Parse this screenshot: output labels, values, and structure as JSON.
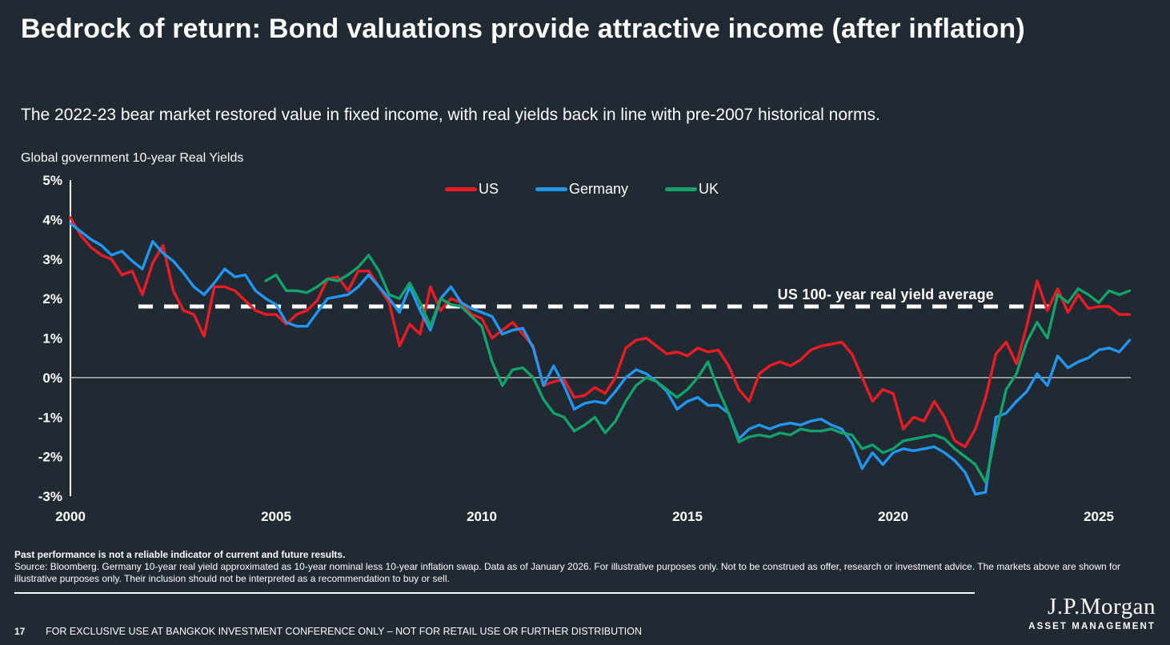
{
  "slide": {
    "title": "Bedrock of return: Bond valuations provide attractive income (after inflation)",
    "subtitle": "The 2022-23 bear market restored value in fixed income, with real yields back in line with pre-2007 historical norms.",
    "page_number": "17",
    "usage_statement": "FOR EXCLUSIVE USE AT BANGKOK INVESTMENT CONFERENCE ONLY – NOT FOR RETAIL USE OR FURTHER DISTRIBUTION",
    "logo": {
      "brand": "J.P.Morgan",
      "division": "ASSET MANAGEMENT"
    },
    "footnotes": {
      "bold_line": "Past performance is not a reliable indicator of current and future results.",
      "source_line": "Source: Bloomberg. Germany 10-year real yield approximated as 10-year nominal less 10-year inflation swap. Data as of January 2026. For illustrative purposes only. Not to be construed as offer, research or investment advice. The markets above are shown for illustrative purposes only. Their inclusion should not be interpreted as a recommendation to buy or sell."
    }
  },
  "chart_data": {
    "type": "line",
    "title": "Global government 10-year Real Yields",
    "annotation": "US 100- year real yield average",
    "annotation_value": 1.8,
    "xlim": [
      2000,
      2026
    ],
    "ylim": [
      -3,
      5
    ],
    "grid": "off",
    "legend_position": "top-center",
    "y_ticks": [
      {
        "label": "5%",
        "value": 5
      },
      {
        "label": "4%",
        "value": 4
      },
      {
        "label": "3%",
        "value": 3
      },
      {
        "label": "2%",
        "value": 2
      },
      {
        "label": "1%",
        "value": 1
      },
      {
        "label": "0%",
        "value": 0
      },
      {
        "label": "-1%",
        "value": -1
      },
      {
        "label": "-2%",
        "value": -2
      },
      {
        "label": "-3%",
        "value": -3
      }
    ],
    "x_ticks": [
      {
        "label": "2000",
        "value": 2000
      },
      {
        "label": "2005",
        "value": 2005
      },
      {
        "label": "2010",
        "value": 2010
      },
      {
        "label": "2015",
        "value": 2015
      },
      {
        "label": "2020",
        "value": 2020
      },
      {
        "label": "2025",
        "value": 2025
      }
    ],
    "series": [
      {
        "name": "US",
        "color": "#ed1c24",
        "start": 2000,
        "step": 0.25,
        "values": [
          4.05,
          3.6,
          3.3,
          3.1,
          3.0,
          2.6,
          2.7,
          2.1,
          2.9,
          3.35,
          2.2,
          1.7,
          1.6,
          1.05,
          2.3,
          2.3,
          2.2,
          1.95,
          1.7,
          1.6,
          1.6,
          1.35,
          1.6,
          1.7,
          1.95,
          2.5,
          2.55,
          2.2,
          2.7,
          2.7,
          2.3,
          1.9,
          0.8,
          1.35,
          1.1,
          2.3,
          1.7,
          2.0,
          1.9,
          1.6,
          1.5,
          1.0,
          1.2,
          1.4,
          1.1,
          0.8,
          -0.2,
          -0.1,
          -0.05,
          -0.5,
          -0.45,
          -0.25,
          -0.4,
          0.0,
          0.75,
          0.95,
          1.0,
          0.8,
          0.6,
          0.65,
          0.55,
          0.75,
          0.65,
          0.7,
          0.3,
          -0.3,
          -0.6,
          0.1,
          0.3,
          0.4,
          0.3,
          0.45,
          0.7,
          0.8,
          0.85,
          0.9,
          0.6,
          0.0,
          -0.6,
          -0.3,
          -0.4,
          -1.3,
          -1.0,
          -1.1,
          -0.6,
          -1.0,
          -1.6,
          -1.75,
          -1.3,
          -0.5,
          0.6,
          0.9,
          0.35,
          1.3,
          2.45,
          1.7,
          2.25,
          1.65,
          2.1,
          1.75,
          1.8,
          1.8,
          1.6,
          1.6
        ]
      },
      {
        "name": "Germany",
        "color": "#2196f3",
        "start": 2000,
        "step": 0.25,
        "values": [
          3.9,
          3.7,
          3.5,
          3.35,
          3.1,
          3.2,
          2.95,
          2.75,
          3.45,
          3.15,
          2.95,
          2.65,
          2.3,
          2.1,
          2.4,
          2.75,
          2.55,
          2.6,
          2.2,
          2.0,
          1.85,
          1.4,
          1.3,
          1.3,
          1.65,
          2.0,
          2.05,
          2.1,
          2.3,
          2.6,
          2.3,
          2.0,
          1.65,
          2.3,
          1.7,
          1.2,
          2.0,
          2.3,
          1.9,
          1.75,
          1.65,
          1.55,
          1.1,
          1.2,
          1.25,
          0.75,
          -0.2,
          0.3,
          -0.2,
          -0.8,
          -0.65,
          -0.6,
          -0.65,
          -0.35,
          0.0,
          0.2,
          0.1,
          -0.1,
          -0.35,
          -0.8,
          -0.6,
          -0.5,
          -0.7,
          -0.7,
          -0.9,
          -1.55,
          -1.3,
          -1.2,
          -1.3,
          -1.2,
          -1.15,
          -1.2,
          -1.1,
          -1.05,
          -1.2,
          -1.3,
          -1.65,
          -2.3,
          -1.9,
          -2.2,
          -1.9,
          -1.8,
          -1.85,
          -1.8,
          -1.75,
          -1.9,
          -2.1,
          -2.4,
          -2.95,
          -2.9,
          -1.0,
          -0.9,
          -0.6,
          -0.35,
          0.1,
          -0.2,
          0.55,
          0.25,
          0.4,
          0.5,
          0.7,
          0.75,
          0.65,
          0.95
        ]
      },
      {
        "name": "UK",
        "color": "#13a269",
        "start": 2004.75,
        "step": 0.25,
        "values": [
          2.45,
          2.6,
          2.2,
          2.2,
          2.15,
          2.3,
          2.5,
          2.45,
          2.6,
          2.8,
          3.1,
          2.7,
          2.1,
          2.0,
          2.4,
          1.9,
          1.3,
          2.0,
          1.85,
          1.8,
          1.55,
          1.3,
          0.4,
          -0.2,
          0.2,
          0.25,
          0.0,
          -0.55,
          -0.9,
          -1.0,
          -1.35,
          -1.2,
          -1.0,
          -1.4,
          -1.1,
          -0.6,
          -0.2,
          0.0,
          -0.1,
          -0.3,
          -0.5,
          -0.3,
          0.0,
          0.4,
          -0.3,
          -0.9,
          -1.63,
          -1.5,
          -1.45,
          -1.5,
          -1.4,
          -1.45,
          -1.3,
          -1.35,
          -1.35,
          -1.3,
          -1.4,
          -1.45,
          -1.8,
          -1.7,
          -1.9,
          -1.8,
          -1.6,
          -1.55,
          -1.5,
          -1.45,
          -1.55,
          -1.8,
          -2.0,
          -2.2,
          -2.65,
          -1.4,
          -0.3,
          0.1,
          0.9,
          1.4,
          1.0,
          2.1,
          1.9,
          2.25,
          2.1,
          1.9,
          2.2,
          2.1,
          2.2
        ]
      }
    ]
  }
}
